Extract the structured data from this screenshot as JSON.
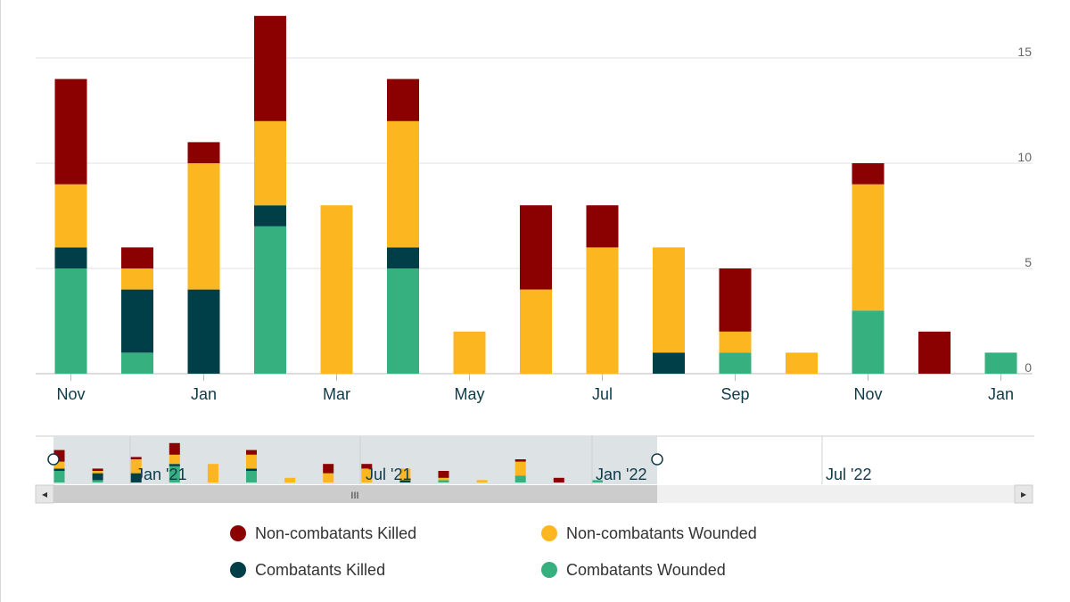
{
  "chart_data": {
    "type": "bar",
    "stacked": true,
    "categories": [
      "Nov 2020",
      "Dec 2020",
      "Jan 2021",
      "Feb 2021",
      "Mar 2021",
      "Apr 2021",
      "May 2021",
      "Jun 2021",
      "Jul 2021",
      "Aug 2021",
      "Sep 2021",
      "Oct 2021",
      "Nov 2021",
      "Dec 2021",
      "Jan 2022"
    ],
    "series": [
      {
        "name": "Combatants Wounded",
        "color": "#35b07e",
        "values": [
          5,
          1,
          0,
          7,
          0,
          5,
          0,
          0,
          0,
          0,
          1,
          0,
          3,
          0,
          1
        ]
      },
      {
        "name": "Combatants Killed",
        "color": "#003f48",
        "values": [
          1,
          3,
          4,
          1,
          0,
          1,
          0,
          0,
          0,
          1,
          0,
          0,
          0,
          0,
          0
        ]
      },
      {
        "name": "Non-combatants Wounded",
        "color": "#fcb61f",
        "values": [
          3,
          1,
          6,
          4,
          8,
          6,
          2,
          4,
          6,
          5,
          1,
          1,
          6,
          0,
          0
        ]
      },
      {
        "name": "Non-combatants Killed",
        "color": "#8b0000",
        "values": [
          5,
          1,
          1,
          5,
          0,
          2,
          0,
          4,
          2,
          0,
          3,
          0,
          1,
          2,
          0
        ]
      }
    ],
    "x_tick_labels": [
      "Nov",
      "Jan",
      "Mar",
      "May",
      "Jul",
      "Sep",
      "Nov",
      "Jan"
    ],
    "x_tick_indices": [
      0,
      2,
      4,
      6,
      8,
      10,
      12,
      14
    ],
    "y_ticks": [
      "0",
      "5",
      "10",
      "15"
    ],
    "ylim": [
      0,
      17
    ],
    "title": "",
    "xlabel": "",
    "ylabel": "",
    "legend_position": "bottom"
  },
  "navigator": {
    "labels": [
      "Jan '21",
      "Jul '21",
      "Jan '22",
      "Jul '22"
    ],
    "scroll_grip": "III",
    "left_arrow": "◂",
    "right_arrow": "▸"
  },
  "legend": {
    "items": [
      {
        "label": "Non-combatants Killed",
        "color": "#8b0000"
      },
      {
        "label": "Non-combatants Wounded",
        "color": "#fcb61f"
      },
      {
        "label": "Combatants Killed",
        "color": "#003f48"
      },
      {
        "label": "Combatants Wounded",
        "color": "#35b07e"
      }
    ]
  }
}
